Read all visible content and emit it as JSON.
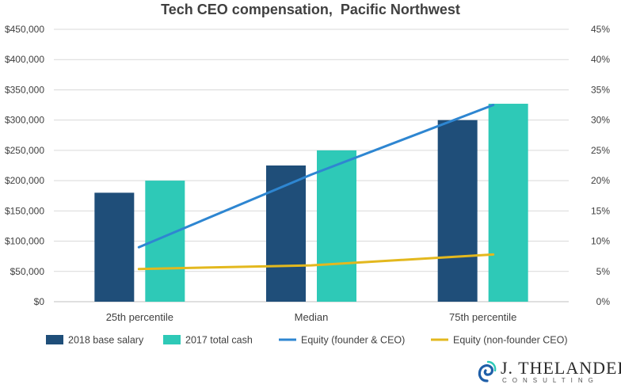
{
  "chart_data": {
    "type": "bar",
    "title": "Tech CEO compensation,  Pacific Northwest",
    "categories": [
      "25th percentile",
      "Median",
      "75th percentile"
    ],
    "series": [
      {
        "name": "2018 base salary",
        "type": "bar",
        "axis": "left",
        "color": "#1f4e79",
        "values": [
          180000,
          225000,
          300000
        ]
      },
      {
        "name": "2017 total cash",
        "type": "bar",
        "axis": "left",
        "color": "#2ec9b7",
        "values": [
          200000,
          250000,
          327000
        ]
      },
      {
        "name": "Equity (founder & CEO)",
        "type": "line",
        "axis": "right",
        "color": "#2e86d1",
        "values": [
          0.09,
          0.21,
          0.325
        ]
      },
      {
        "name": "Equity (non-founder CEO)",
        "type": "line",
        "axis": "right",
        "color": "#e3b81e",
        "values": [
          0.054,
          0.06,
          0.078
        ]
      }
    ],
    "left_axis": {
      "min": 0,
      "max": 450000,
      "ticks": [
        "$0",
        "$50,000",
        "$100,000",
        "$150,000",
        "$200,000",
        "$250,000",
        "$300,000",
        "$350,000",
        "$400,000",
        "$450,000"
      ]
    },
    "right_axis": {
      "min": 0,
      "max": 0.45,
      "ticks": [
        "0%",
        "5%",
        "10%",
        "15%",
        "20%",
        "25%",
        "30%",
        "35%",
        "40%",
        "45%"
      ]
    },
    "grid": true,
    "legend_position": "bottom"
  },
  "logo": {
    "name": "J. THELANDER",
    "sub": "CONSULTING"
  }
}
